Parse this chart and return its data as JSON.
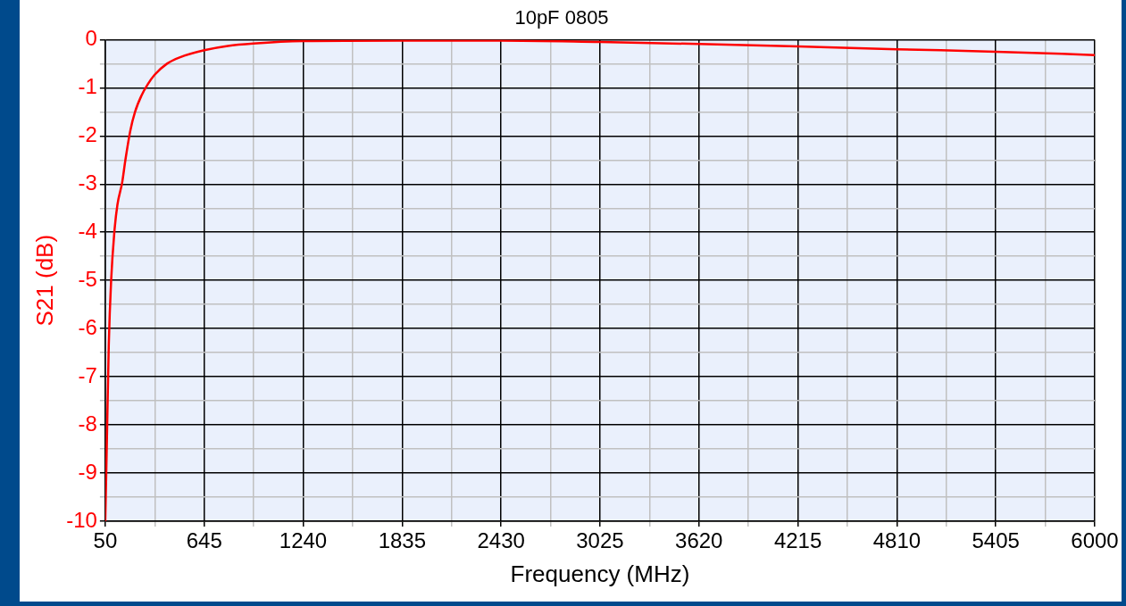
{
  "chart_data": {
    "type": "line",
    "title": "10pF 0805",
    "xlabel": "Frequency (MHz)",
    "ylabel": "S21 (dB)",
    "x": [
      50,
      59.6,
      71,
      85,
      104,
      123,
      152,
      171,
      200,
      229,
      268,
      305,
      347,
      421,
      497,
      645,
      787,
      941,
      1240,
      1835,
      2430,
      3025,
      3620,
      4215,
      4810,
      5405,
      6000
    ],
    "series": [
      {
        "color": "#ff0000",
        "values": [
          -10,
          -8.35,
          -6.35,
          -5.02,
          -4.02,
          -3.43,
          -2.96,
          -2.5,
          -1.9,
          -1.5,
          -1.16,
          -0.93,
          -0.73,
          -0.5,
          -0.37,
          -0.22,
          -0.13,
          -0.08,
          -0.03,
          -0.02,
          -0.02,
          -0.05,
          -0.09,
          -0.14,
          -0.2,
          -0.25,
          -0.32
        ]
      }
    ],
    "xlim": [
      50,
      6000
    ],
    "xticks": [
      50,
      {
        "value": 347.5,
        "label": null
      },
      645,
      {
        "value": 942.5,
        "label": null
      },
      1240,
      {
        "value": 1537.5,
        "label": null
      },
      1835,
      {
        "value": 2132.5,
        "label": null
      },
      2430,
      {
        "value": 2727.5,
        "label": null
      },
      3025,
      {
        "value": 3322.5,
        "label": null
      },
      3620,
      {
        "value": 3917.5,
        "label": null
      },
      4215,
      {
        "value": 4512.5,
        "label": null
      },
      4810,
      {
        "value": 5107.5,
        "label": null
      },
      5405,
      {
        "value": 5702.5,
        "label": null
      },
      6000
    ],
    "ylim": [
      -10,
      0
    ],
    "yticks": [
      -10,
      {
        "value": -9.5,
        "label": null
      },
      -9,
      {
        "value": -8.5,
        "label": null
      },
      -8,
      {
        "value": -7.5,
        "label": null
      },
      -7,
      {
        "value": -6.5,
        "label": null
      },
      -6,
      {
        "value": -5.5,
        "label": null
      },
      -5,
      {
        "value": -4.5,
        "label": null
      },
      -4,
      {
        "value": -3.5,
        "label": null
      },
      -3,
      {
        "value": -2.5,
        "label": null
      },
      -2,
      {
        "value": -1.5,
        "label": null
      },
      -1,
      {
        "value": -0.5,
        "label": null
      },
      0
    ],
    "grid": true,
    "legend": false,
    "marker": "none",
    "line_style": "solid"
  }
}
